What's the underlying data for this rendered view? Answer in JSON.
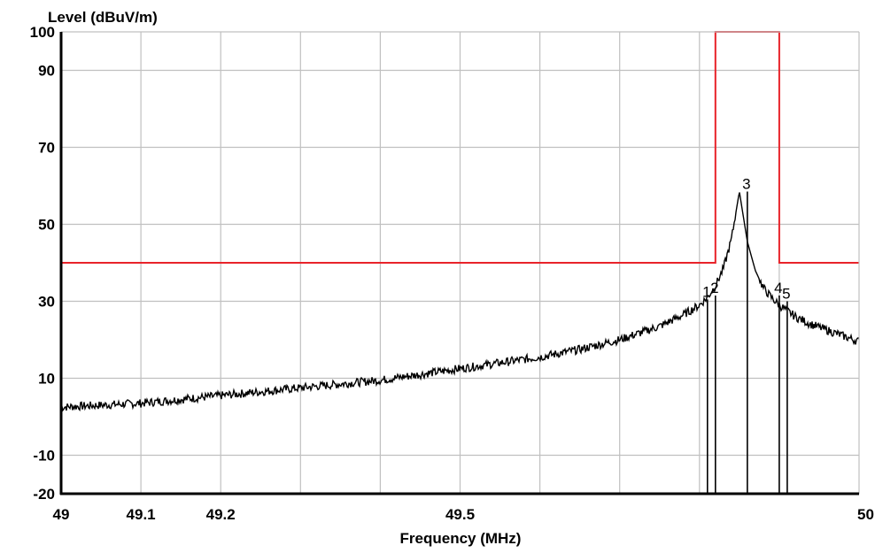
{
  "chart_data": {
    "type": "line",
    "title": "",
    "xlabel": "Frequency (MHz)",
    "ylabel": "Level (dBuV/m)",
    "xlim": [
      49,
      50
    ],
    "ylim": [
      -20,
      100
    ],
    "grid": true,
    "x_ticks": [
      {
        "value": 49,
        "label": "49"
      },
      {
        "value": 49.1,
        "label": "49.1"
      },
      {
        "value": 49.2,
        "label": "49.2"
      },
      {
        "value": 49.5,
        "label": "49.5"
      },
      {
        "value": 50,
        "label": "50"
      }
    ],
    "x_gridlines": [
      49.1,
      49.2,
      49.3,
      49.4,
      49.5,
      49.6,
      49.7,
      49.8,
      49.9
    ],
    "y_ticks": [
      {
        "value": 100,
        "label": "100"
      },
      {
        "value": 90,
        "label": "90"
      },
      {
        "value": 70,
        "label": "70"
      },
      {
        "value": 50,
        "label": "50"
      },
      {
        "value": 30,
        "label": "30"
      },
      {
        "value": 10,
        "label": "10"
      },
      {
        "value": -10,
        "label": "-10"
      },
      {
        "value": -20,
        "label": "-20"
      }
    ],
    "y_gridlines": [
      90,
      70,
      50,
      30,
      10,
      -10
    ],
    "limit_line": {
      "color": "#e8232a",
      "x": [
        49,
        49.82,
        49.82,
        49.9,
        49.9,
        50
      ],
      "y": [
        40,
        40,
        100,
        100,
        40,
        40
      ]
    },
    "series": [
      {
        "color": "#000000",
        "x": [
          49.0,
          49.05,
          49.1,
          49.15,
          49.2,
          49.25,
          49.3,
          49.35,
          49.4,
          49.45,
          49.5,
          49.55,
          49.6,
          49.65,
          49.7,
          49.75,
          49.78,
          49.8,
          49.81,
          49.82,
          49.83,
          49.84,
          49.85,
          49.86,
          49.87,
          49.88,
          49.89,
          49.9,
          49.91,
          49.92,
          49.94,
          49.96,
          49.98,
          50.0
        ],
        "y": [
          2.5,
          3.0,
          3.5,
          4.5,
          5.5,
          6.5,
          7.5,
          8.5,
          9.5,
          11.0,
          12.5,
          14.0,
          15.5,
          17.5,
          20.0,
          23.5,
          26.5,
          29.0,
          31.0,
          34.0,
          38.5,
          46.0,
          58.5,
          45.5,
          38.0,
          33.5,
          31.0,
          29.0,
          27.5,
          26.0,
          24.0,
          22.5,
          21.0,
          19.5
        ]
      }
    ],
    "markers": [
      {
        "label": "1",
        "x": 49.81,
        "y": 30.5
      },
      {
        "label": "2",
        "x": 49.82,
        "y": 31.5
      },
      {
        "label": "3",
        "x": 49.86,
        "y": 58.5
      },
      {
        "label": "4",
        "x": 49.9,
        "y": 31.5
      },
      {
        "label": "5",
        "x": 49.91,
        "y": 30.0
      }
    ]
  }
}
